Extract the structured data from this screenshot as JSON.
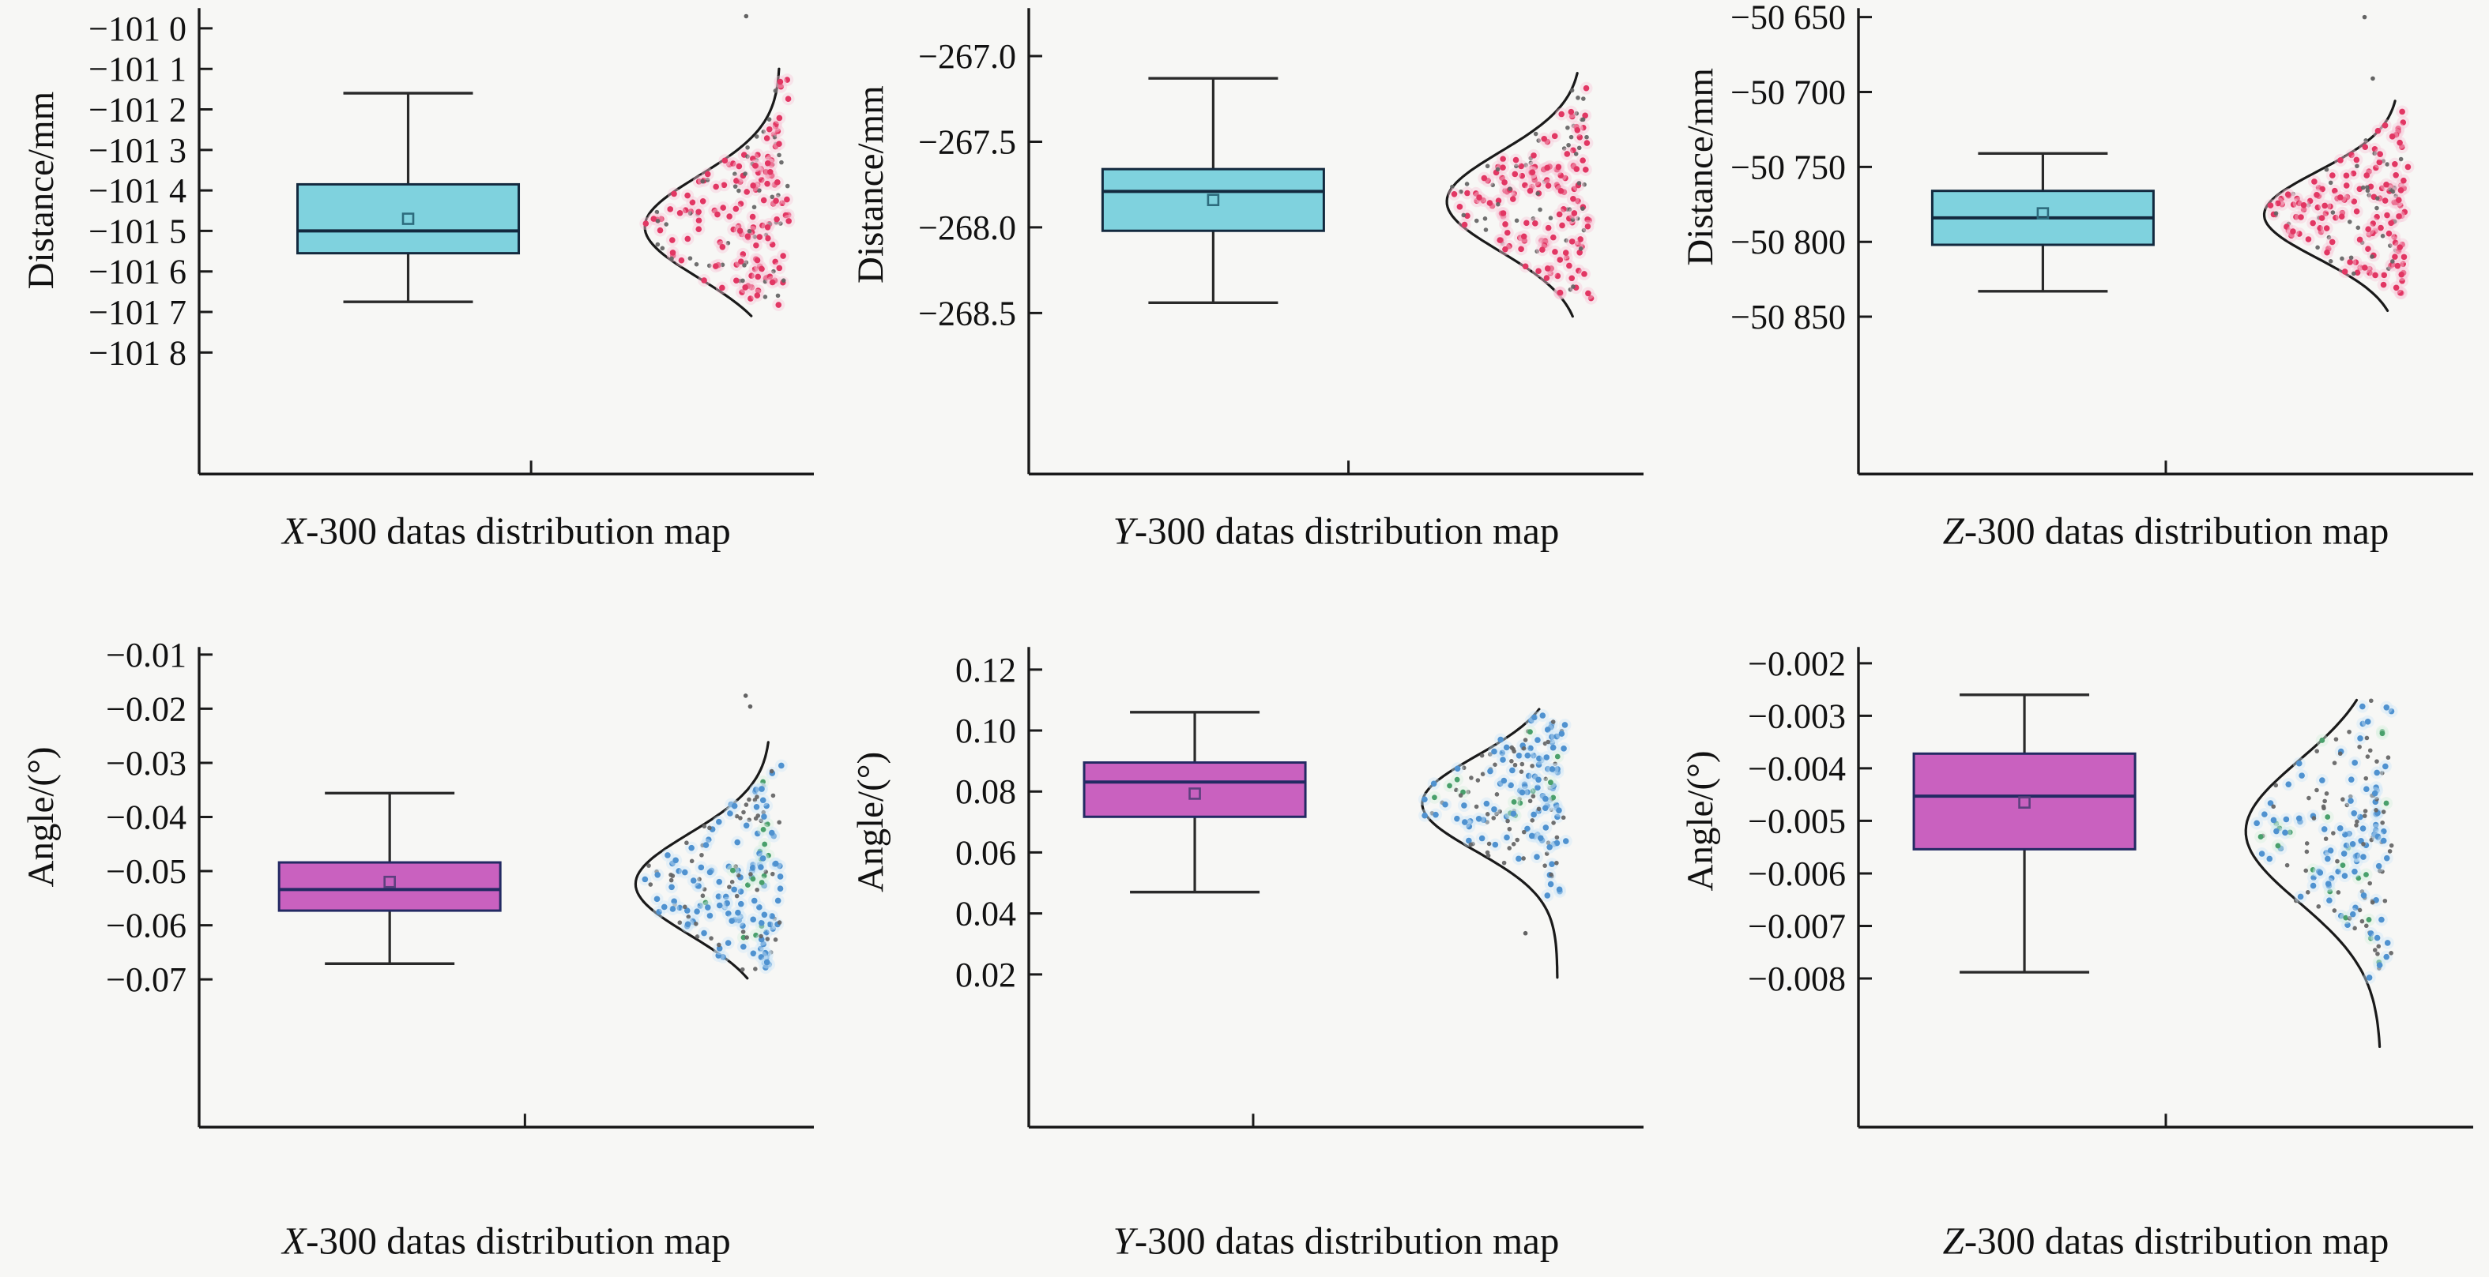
{
  "style": {
    "background": "#f7f7f5",
    "axis_color": "#1a1a1a",
    "text_color": "#111111",
    "curve_color": "#1a1a1a",
    "whisker_color": "#2a2a2a",
    "gray_point": "#636363",
    "green_point": "#49a06b",
    "green_halo": "#d8f0e0"
  },
  "chart_data": [
    {
      "type": "box",
      "overlay": "half-violin normal curve with jittered points",
      "title_prefix": "X",
      "title_suffix": "-300 datas distribution map",
      "ylabel": "Distance/mm",
      "yticks": [
        {
          "label": "−101 0",
          "v": -101.0
        },
        {
          "label": "−101 1",
          "v": -101.1
        },
        {
          "label": "−101 2",
          "v": -101.2
        },
        {
          "label": "−101 3",
          "v": -101.3
        },
        {
          "label": "−101 4",
          "v": -101.4
        },
        {
          "label": "−101 5",
          "v": -101.5
        },
        {
          "label": "−101 6",
          "v": -101.6
        },
        {
          "label": "−101 7",
          "v": -101.7
        },
        {
          "label": "−101 8",
          "v": -101.8
        }
      ],
      "ylim": {
        "top": -100.95,
        "bottom": -102.1
      },
      "box": {
        "whisker_high": -101.16,
        "q3": -101.385,
        "median": -101.5,
        "q1": -101.555,
        "whisker_low": -101.675,
        "mean": -101.47
      },
      "box_center_f": 0.34,
      "xtick_f": 0.54,
      "curve": {
        "mean": -101.49,
        "sd": 0.125,
        "from": -101.1,
        "to": -101.71,
        "baseline_f": 0.945
      },
      "scatter": {
        "n": 190,
        "mean": -101.48,
        "sd": 0.14,
        "min": -101.685,
        "max": -101.125,
        "seed": 11,
        "gray_fraction": 0.28,
        "green_fraction": 0
      },
      "outliers": [
        -100.97
      ],
      "colors": {
        "box_fill": "#7fd2de",
        "box_edge": "#13293e",
        "median": "#13293e",
        "point": "#e23663",
        "halo": "#f7c9d9",
        "mean_marker": "#2d6b7d"
      }
    },
    {
      "type": "box",
      "overlay": "half-violin normal curve with jittered points",
      "title_prefix": "Y",
      "title_suffix": "-300 datas distribution map",
      "ylabel": "Distance/mm",
      "yticks": [
        {
          "label": "−267.0",
          "v": -267.0
        },
        {
          "label": "−267.5",
          "v": -267.5
        },
        {
          "label": "−268.0",
          "v": -268.0
        },
        {
          "label": "−268.5",
          "v": -268.5
        }
      ],
      "ylim": {
        "top": -266.72,
        "bottom": -269.44
      },
      "box": {
        "whisker_high": -267.13,
        "q3": -267.66,
        "median": -267.79,
        "q1": -268.02,
        "whisker_low": -268.44,
        "mean": -267.84
      },
      "box_center_f": 0.3,
      "xtick_f": 0.52,
      "curve": {
        "mean": -267.85,
        "sd": 0.29,
        "from": -267.1,
        "to": -268.52,
        "baseline_f": 0.9
      },
      "scatter": {
        "n": 195,
        "mean": -267.82,
        "sd": 0.32,
        "min": -268.42,
        "max": -267.16,
        "seed": 22,
        "gray_fraction": 0.28,
        "green_fraction": 0
      },
      "outliers": [],
      "colors": {
        "box_fill": "#7fd2de",
        "box_edge": "#13293e",
        "median": "#13293e",
        "point": "#e23663",
        "halo": "#f7c9d9",
        "mean_marker": "#2d6b7d"
      }
    },
    {
      "type": "box",
      "overlay": "half-violin normal curve with jittered points",
      "title_prefix": "Z",
      "title_suffix": "-300 datas distribution map",
      "ylabel": "Distance/mm",
      "yticks": [
        {
          "label": "−50 650",
          "v": -50650
        },
        {
          "label": "−50 700",
          "v": -50700
        },
        {
          "label": "−50 750",
          "v": -50750
        },
        {
          "label": "−50 800",
          "v": -50800
        },
        {
          "label": "−50 850",
          "v": -50850
        }
      ],
      "ylim": {
        "top": -50644,
        "bottom": -50955
      },
      "box": {
        "whisker_high": -50741,
        "q3": -50766,
        "median": -50784,
        "q1": -50802,
        "whisker_low": -50833,
        "mean": -50781
      },
      "box_center_f": 0.3,
      "xtick_f": 0.5,
      "curve": {
        "mean": -50782,
        "sd": 29,
        "from": -50706,
        "to": -50846,
        "baseline_f": 0.88
      },
      "scatter": {
        "n": 180,
        "mean": -50779,
        "sd": 27,
        "min": -50838,
        "max": -50713,
        "seed": 33,
        "gray_fraction": 0.3,
        "green_fraction": 0
      },
      "outliers": [
        -50650,
        -50691
      ],
      "colors": {
        "box_fill": "#7fd2de",
        "box_edge": "#13293e",
        "median": "#13293e",
        "point": "#e23663",
        "halo": "#f7c9d9",
        "mean_marker": "#2d6b7d"
      }
    },
    {
      "type": "box",
      "overlay": "half-violin normal curve with jittered points",
      "title_prefix": "X",
      "title_suffix": "-300 datas distribution map",
      "ylabel": "Angle/(°)",
      "yticks": [
        {
          "label": "−0.01",
          "v": -0.01
        },
        {
          "label": "−0.02",
          "v": -0.02
        },
        {
          "label": "−0.03",
          "v": -0.03
        },
        {
          "label": "−0.04",
          "v": -0.04
        },
        {
          "label": "−0.05",
          "v": -0.05
        },
        {
          "label": "−0.06",
          "v": -0.06
        },
        {
          "label": "−0.07",
          "v": -0.07
        }
      ],
      "ylim": {
        "top": -0.0086,
        "bottom": -0.0973
      },
      "box": {
        "whisker_high": -0.0356,
        "q3": -0.0484,
        "median": -0.0534,
        "q1": -0.0573,
        "whisker_low": -0.0671,
        "mean": -0.052
      },
      "box_center_f": 0.31,
      "xtick_f": 0.53,
      "curve": {
        "mean": -0.0524,
        "sd": 0.0093,
        "from": -0.0262,
        "to": -0.0698,
        "baseline_f": 0.93
      },
      "scatter": {
        "n": 190,
        "mean": -0.0521,
        "sd": 0.0105,
        "min": -0.0692,
        "max": -0.0295,
        "seed": 44,
        "gray_fraction": 0.3,
        "green_fraction": 0.08
      },
      "outliers": [
        -0.0176,
        -0.0196
      ],
      "colors": {
        "box_fill": "#c961bf",
        "box_edge": "#232a63",
        "median": "#232a63",
        "point": "#4f92d0",
        "halo": "#cfe6f7",
        "mean_marker": "#5d3f7e"
      }
    },
    {
      "type": "box",
      "overlay": "half-violin normal curve with jittered points",
      "title_prefix": "Y",
      "title_suffix": "-300 datas distribution map",
      "ylabel": "Angle/(°)",
      "yticks": [
        {
          "label": "0.12",
          "v": 0.12
        },
        {
          "label": "0.10",
          "v": 0.1
        },
        {
          "label": "0.08",
          "v": 0.08
        },
        {
          "label": "0.06",
          "v": 0.06
        },
        {
          "label": "0.04",
          "v": 0.04
        },
        {
          "label": "0.02",
          "v": 0.02
        }
      ],
      "ylim": {
        "top": 0.1274,
        "bottom": -0.0301
      },
      "box": {
        "whisker_high": 0.106,
        "q3": 0.0895,
        "median": 0.0831,
        "q1": 0.0717,
        "whisker_low": 0.047,
        "mean": 0.0793
      },
      "box_center_f": 0.27,
      "xtick_f": 0.365,
      "curve": {
        "mean": 0.076,
        "sd": 0.0155,
        "from": 0.107,
        "to": 0.019,
        "baseline_f": 0.86
      },
      "scatter": {
        "n": 185,
        "mean": 0.08,
        "sd": 0.016,
        "min": 0.044,
        "max": 0.105,
        "seed": 55,
        "gray_fraction": 0.32,
        "green_fraction": 0.08
      },
      "outliers": [
        0.0335
      ],
      "colors": {
        "box_fill": "#c961bf",
        "box_edge": "#232a63",
        "median": "#232a63",
        "point": "#4f92d0",
        "halo": "#cfe6f7",
        "mean_marker": "#5d3f7e"
      }
    },
    {
      "type": "box",
      "overlay": "half-violin normal curve with jittered points",
      "title_prefix": "Z",
      "title_suffix": "-300 datas distribution map",
      "ylabel": "Angle/(°)",
      "yticks": [
        {
          "label": "−0.002",
          "v": -0.002
        },
        {
          "label": "−0.003",
          "v": -0.003
        },
        {
          "label": "−0.004",
          "v": -0.004
        },
        {
          "label": "−0.005",
          "v": -0.005
        },
        {
          "label": "−0.006",
          "v": -0.006
        },
        {
          "label": "−0.007",
          "v": -0.007
        },
        {
          "label": "−0.008",
          "v": -0.008
        }
      ],
      "ylim": {
        "top": -0.00169,
        "bottom": -0.01083
      },
      "box": {
        "whisker_high": -0.0026,
        "q3": -0.00372,
        "median": -0.00453,
        "q1": -0.00554,
        "whisker_low": -0.00788,
        "mean": -0.00465
      },
      "box_center_f": 0.27,
      "xtick_f": 0.5,
      "curve": {
        "mean": -0.0052,
        "sd": 0.00135,
        "from": -0.0027,
        "to": -0.0093,
        "baseline_f": 0.85
      },
      "scatter": {
        "n": 185,
        "mean": -0.0051,
        "sd": 0.00135,
        "min": -0.008,
        "max": -0.0027,
        "seed": 66,
        "gray_fraction": 0.42,
        "green_fraction": 0.1
      },
      "outliers": [],
      "colors": {
        "box_fill": "#c961bf",
        "box_edge": "#232a63",
        "median": "#232a63",
        "point": "#4f92d0",
        "halo": "#cfe6f7",
        "mean_marker": "#5d3f7e"
      }
    }
  ]
}
